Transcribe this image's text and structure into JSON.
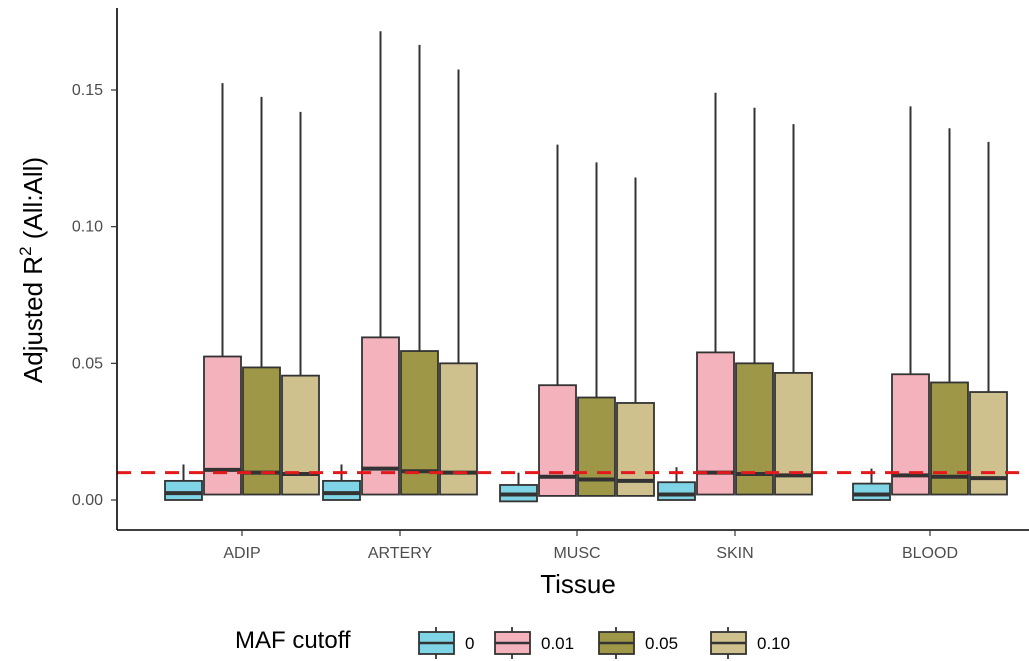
{
  "chart_data": {
    "type": "box",
    "xlabel": "Tissue",
    "ylabel": "Adjusted  R",
    "ylabel_superscript": "2",
    "ylabel_suffix": " (All:All)",
    "categories": [
      "ADIP",
      "ARTERY",
      "MUSC",
      "SKIN",
      "BLOOD"
    ],
    "ylim": [
      -0.01,
      0.18
    ],
    "yticks": [
      0.0,
      0.05,
      0.1,
      0.15
    ],
    "ytick_labels": [
      "0.00",
      "0.05",
      "0.10",
      "0.15"
    ],
    "reference_line": {
      "y": 0.01,
      "color": "#e31a1c",
      "style": "dashed"
    },
    "grid": false,
    "legend": {
      "title": "MAF cutoff",
      "position": "bottom",
      "entries": [
        "0",
        "0.01",
        "0.05",
        "0.10"
      ]
    },
    "series": [
      {
        "name": "0",
        "color": "#7fd4e6",
        "boxes": [
          {
            "q1": 0.0,
            "median": 0.0025,
            "q3": 0.007,
            "whisker_low": 0.0,
            "whisker_high": 0.013
          },
          {
            "q1": 0.0,
            "median": 0.0025,
            "q3": 0.007,
            "whisker_low": 0.0,
            "whisker_high": 0.013
          },
          {
            "q1": -0.0005,
            "median": 0.002,
            "q3": 0.0055,
            "whisker_low": -0.0005,
            "whisker_high": 0.01
          },
          {
            "q1": 0.0,
            "median": 0.002,
            "q3": 0.0065,
            "whisker_low": 0.0,
            "whisker_high": 0.012
          },
          {
            "q1": 0.0,
            "median": 0.002,
            "q3": 0.006,
            "whisker_low": 0.0,
            "whisker_high": 0.0115
          }
        ]
      },
      {
        "name": "0.01",
        "color": "#f4b2bc",
        "boxes": [
          {
            "q1": 0.002,
            "median": 0.011,
            "q3": 0.0525,
            "whisker_low": 0.002,
            "whisker_high": 0.1525
          },
          {
            "q1": 0.002,
            "median": 0.0115,
            "q3": 0.0595,
            "whisker_low": 0.002,
            "whisker_high": 0.1715
          },
          {
            "q1": 0.0015,
            "median": 0.0085,
            "q3": 0.042,
            "whisker_low": 0.0015,
            "whisker_high": 0.13
          },
          {
            "q1": 0.002,
            "median": 0.01,
            "q3": 0.054,
            "whisker_low": 0.002,
            "whisker_high": 0.149
          },
          {
            "q1": 0.002,
            "median": 0.009,
            "q3": 0.046,
            "whisker_low": 0.002,
            "whisker_high": 0.144
          }
        ]
      },
      {
        "name": "0.05",
        "color": "#9e9747",
        "boxes": [
          {
            "q1": 0.002,
            "median": 0.01,
            "q3": 0.0485,
            "whisker_low": 0.002,
            "whisker_high": 0.1475
          },
          {
            "q1": 0.002,
            "median": 0.0105,
            "q3": 0.0545,
            "whisker_low": 0.002,
            "whisker_high": 0.1665
          },
          {
            "q1": 0.0015,
            "median": 0.0075,
            "q3": 0.0375,
            "whisker_low": 0.0015,
            "whisker_high": 0.1235
          },
          {
            "q1": 0.002,
            "median": 0.0095,
            "q3": 0.05,
            "whisker_low": 0.002,
            "whisker_high": 0.1435
          },
          {
            "q1": 0.002,
            "median": 0.0085,
            "q3": 0.043,
            "whisker_low": 0.002,
            "whisker_high": 0.136
          }
        ]
      },
      {
        "name": "0.10",
        "color": "#cfc18e",
        "boxes": [
          {
            "q1": 0.002,
            "median": 0.0095,
            "q3": 0.0455,
            "whisker_low": 0.002,
            "whisker_high": 0.142
          },
          {
            "q1": 0.002,
            "median": 0.01,
            "q3": 0.05,
            "whisker_low": 0.002,
            "whisker_high": 0.1575
          },
          {
            "q1": 0.0015,
            "median": 0.007,
            "q3": 0.0355,
            "whisker_low": 0.0015,
            "whisker_high": 0.118
          },
          {
            "q1": 0.002,
            "median": 0.009,
            "q3": 0.0465,
            "whisker_low": 0.002,
            "whisker_high": 0.1375
          },
          {
            "q1": 0.002,
            "median": 0.008,
            "q3": 0.0395,
            "whisker_low": 0.002,
            "whisker_high": 0.131
          }
        ]
      }
    ]
  }
}
